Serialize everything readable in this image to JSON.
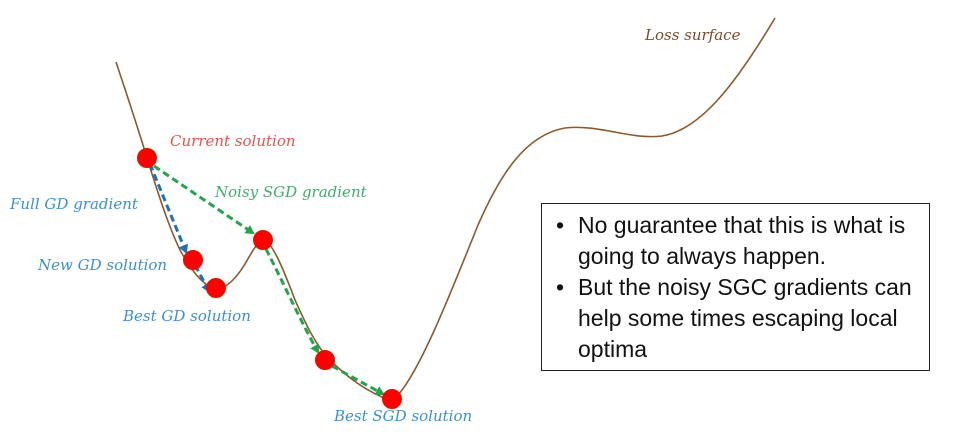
{
  "labels": {
    "loss_surface": "Loss surface",
    "current_solution": "Current solution",
    "noisy_sgd_gradient": "Noisy SGD gradient",
    "full_gd_gradient": "Full GD gradient",
    "new_gd_solution": "New GD solution",
    "best_gd_solution": "Best GD solution",
    "best_sgd_solution": "Best SGD solution"
  },
  "notes": [
    "No guarantee that this is what is going to always happen.",
    "But the noisy SGC gradients can help some times escaping local optima"
  ],
  "colors": {
    "curve": "#8B5A2B",
    "point": "#ff0000",
    "gd_arrow": "#1f6fbf",
    "sgd_arrow": "#22a64a",
    "red_label": "#e8534a",
    "blue_label": "#3a8fd6",
    "green_label": "#3fae6a",
    "brown_label": "#7a4a2a"
  }
}
